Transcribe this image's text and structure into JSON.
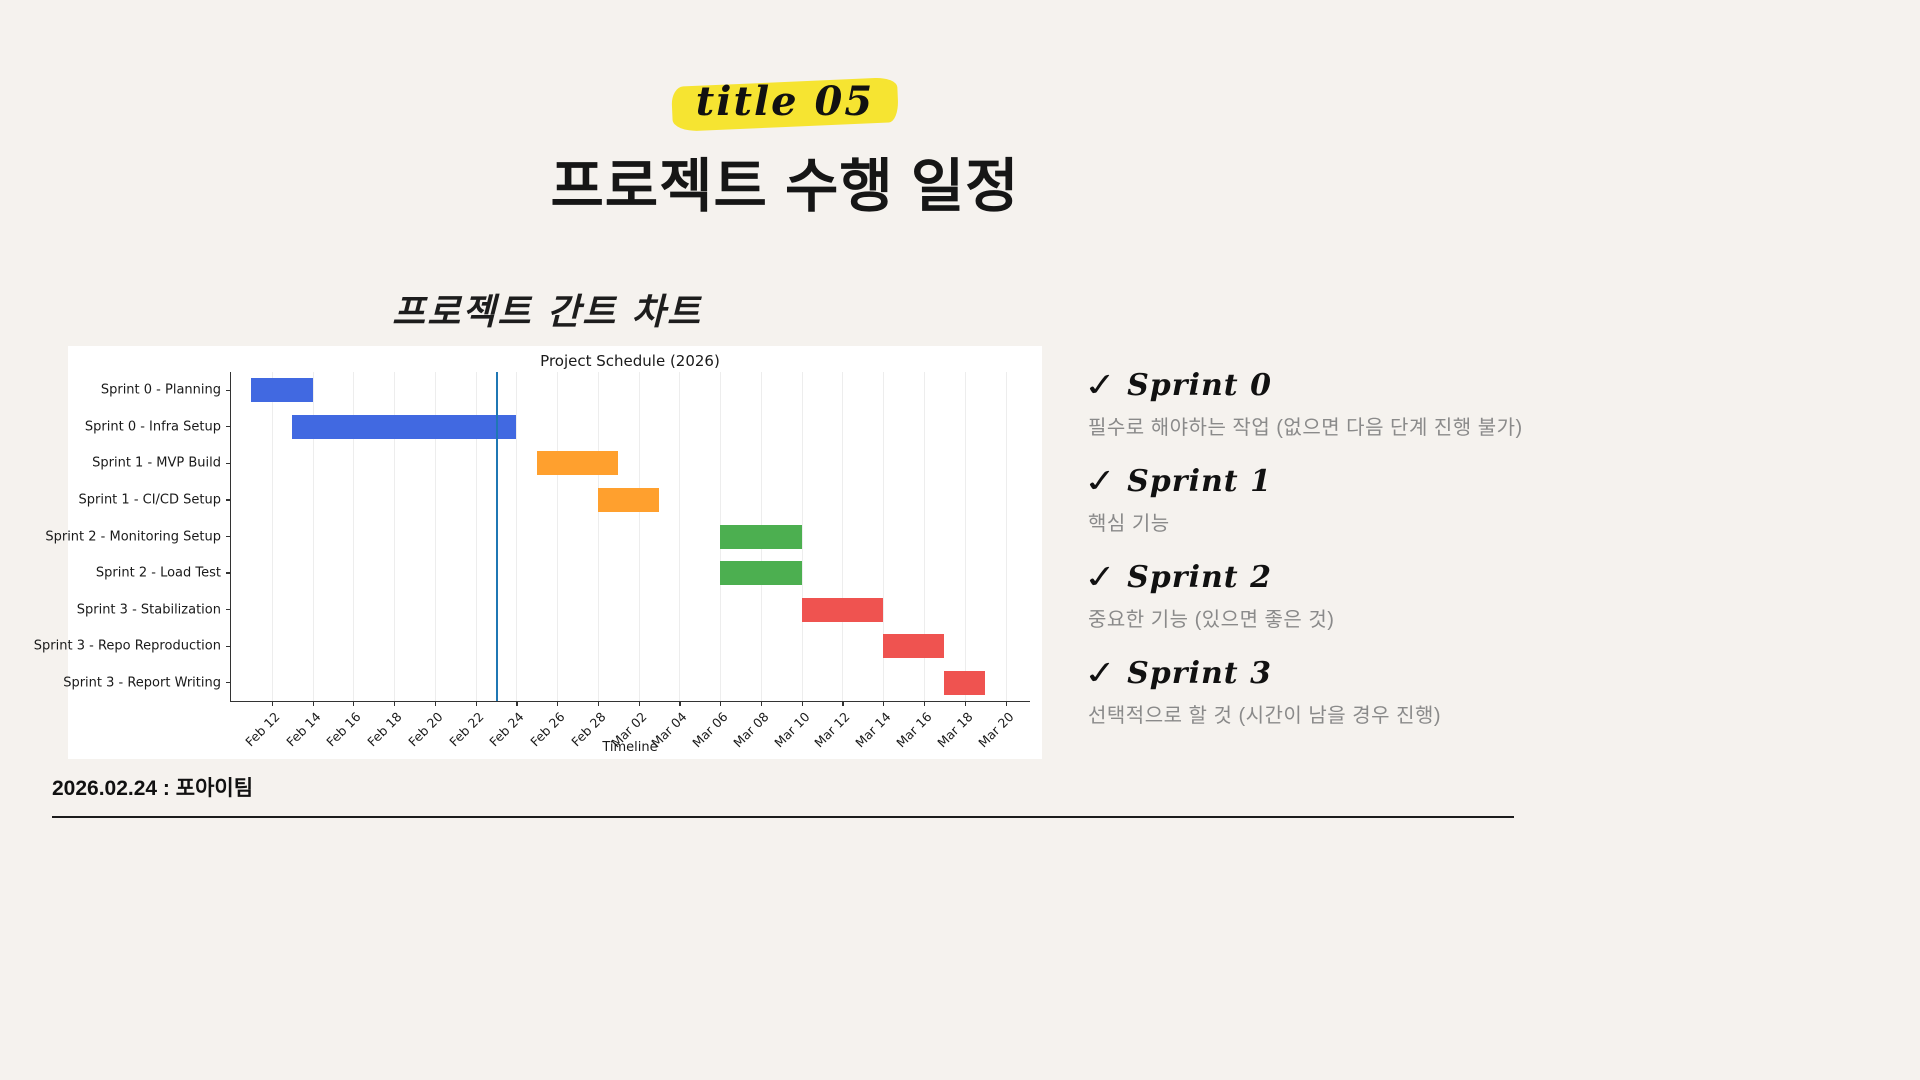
{
  "page": {
    "background": "#f5f2ee"
  },
  "header": {
    "badge": "title 05",
    "badge_highlight_color": "#f6e431",
    "title": "프로젝트 수행 일정",
    "subtitle": "프로젝트 간트 차트"
  },
  "chart_data": {
    "type": "bar",
    "variant": "gantt",
    "title": "Project Schedule (2026)",
    "xlabel": "Timeline",
    "ylabel": "",
    "x_ticks": [
      "Feb 12",
      "Feb 14",
      "Feb 16",
      "Feb 18",
      "Feb 20",
      "Feb 22",
      "Feb 24",
      "Feb 26",
      "Feb 28",
      "Mar 02",
      "Mar 04",
      "Mar 06",
      "Mar 08",
      "Mar 10",
      "Mar 12",
      "Mar 14",
      "Mar 16",
      "Mar 18",
      "Mar 20"
    ],
    "x_tick_days": [
      0,
      2,
      4,
      6,
      8,
      10,
      12,
      14,
      16,
      18,
      20,
      22,
      24,
      26,
      28,
      30,
      32,
      34,
      36
    ],
    "axis_range_days": [
      -2.0,
      37.2
    ],
    "day_zero_date": "Feb 12",
    "today_line": {
      "day": 11,
      "date": "Feb 23",
      "color": "#1f77b4"
    },
    "grid": true,
    "tasks": [
      {
        "label": "Sprint 0 - Planning",
        "start": "Feb 11",
        "end": "Feb 14",
        "start_day": -1,
        "end_day": 2,
        "color": "#4169e1"
      },
      {
        "label": "Sprint 0 - Infra Setup",
        "start": "Feb 13",
        "end": "Feb 24",
        "start_day": 1,
        "end_day": 12,
        "color": "#4169e1"
      },
      {
        "label": "Sprint 1 - MVP Build",
        "start": "Feb 25",
        "end": "Mar 01",
        "start_day": 13,
        "end_day": 17,
        "color": "#ffa02e"
      },
      {
        "label": "Sprint 1 - CI/CD Setup",
        "start": "Feb 28",
        "end": "Mar 03",
        "start_day": 16,
        "end_day": 19,
        "color": "#ffa02e"
      },
      {
        "label": "Sprint 2 - Monitoring Setup",
        "start": "Mar 06",
        "end": "Mar 10",
        "start_day": 22,
        "end_day": 26,
        "color": "#4caf50"
      },
      {
        "label": "Sprint 2 - Load Test",
        "start": "Mar 06",
        "end": "Mar 10",
        "start_day": 22,
        "end_day": 26,
        "color": "#4caf50"
      },
      {
        "label": "Sprint 3 - Stabilization",
        "start": "Mar 10",
        "end": "Mar 14",
        "start_day": 26,
        "end_day": 30,
        "color": "#ef5350"
      },
      {
        "label": "Sprint 3 - Repo Reproduction",
        "start": "Mar 14",
        "end": "Mar 17",
        "start_day": 30,
        "end_day": 33,
        "color": "#ef5350"
      },
      {
        "label": "Sprint 3 - Report Writing",
        "start": "Mar 17",
        "end": "Mar 19",
        "start_day": 33,
        "end_day": 35,
        "color": "#ef5350"
      }
    ]
  },
  "legend": {
    "items": [
      {
        "check": "✓",
        "title": "Sprint 0",
        "desc": "필수로 해야하는 작업 (없으면 다음 단계 진행 불가)"
      },
      {
        "check": "✓",
        "title": "Sprint 1",
        "desc": "핵심 기능"
      },
      {
        "check": "✓",
        "title": "Sprint 2",
        "desc": "중요한 기능 (있으면 좋은 것)"
      },
      {
        "check": "✓",
        "title": "Sprint 3",
        "desc": "선택적으로 할 것 (시간이 남을 경우 진행)"
      }
    ]
  },
  "footer": {
    "date_team": "2026.02.24 : 포아이팀"
  }
}
